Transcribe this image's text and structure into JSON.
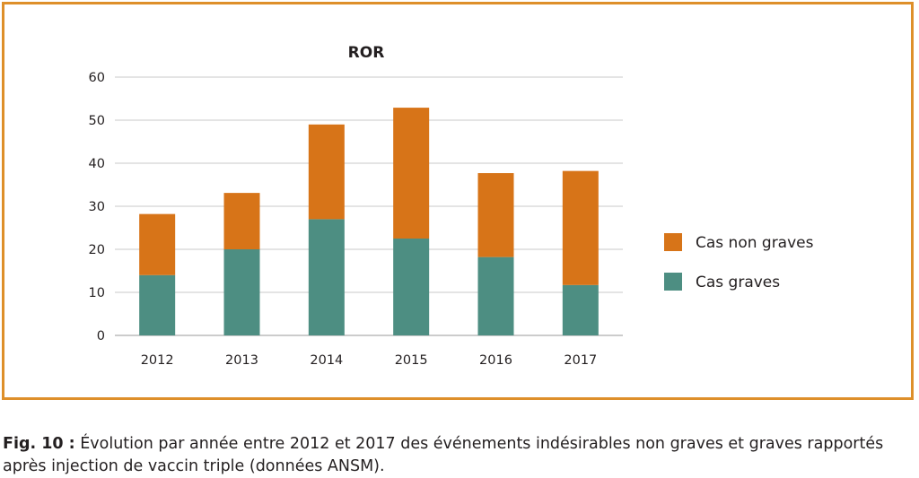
{
  "chart_data": {
    "type": "bar",
    "stacked": true,
    "title": "ROR",
    "xlabel": "",
    "ylabel": "",
    "categories": [
      "2012",
      "2013",
      "2014",
      "2015",
      "2016",
      "2017"
    ],
    "series": [
      {
        "name": "Cas graves",
        "color": "#4d8e82",
        "values": [
          14,
          20,
          27,
          22.5,
          18.2,
          11.7
        ]
      },
      {
        "name": "Cas non graves",
        "color": "#d77418",
        "values": [
          14.2,
          13.1,
          22,
          30.4,
          19.5,
          26.5
        ]
      }
    ],
    "ylim": [
      0,
      60
    ],
    "yticks": [
      0,
      10,
      20,
      30,
      40,
      50,
      60
    ],
    "grid": true,
    "legend_position": "right",
    "legend_order": [
      "Cas non graves",
      "Cas graves"
    ]
  },
  "caption": {
    "label": "Fig. 10 :",
    "text": " Évolution par année entre 2012 et 2017 des événements indésirables non graves et graves rapportés après injection de vaccin triple (données ANSM)."
  },
  "colors": {
    "frame": "#de8f2a",
    "grid": "#c8c8c8"
  }
}
